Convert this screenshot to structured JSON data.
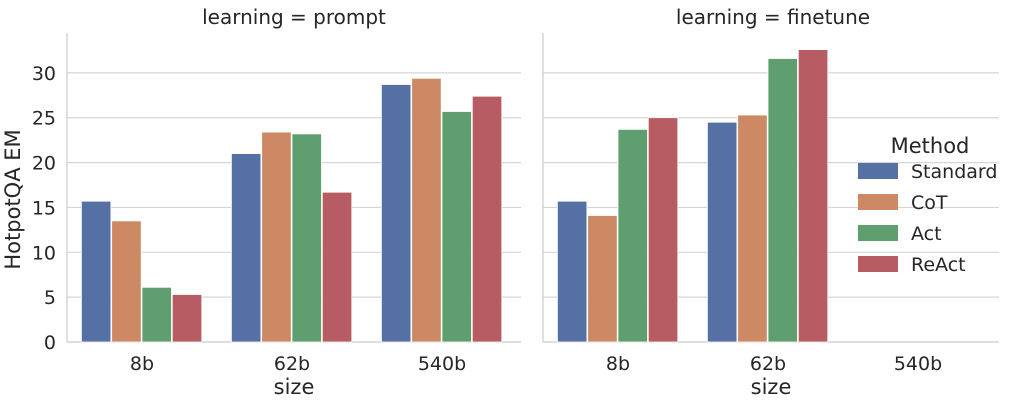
{
  "chart_data": {
    "type": "bar",
    "ylabel": "HotpotQA EM",
    "xlabel": "size",
    "ylim": [
      0,
      34
    ],
    "yticks": [
      0,
      5,
      10,
      15,
      20,
      25,
      30
    ],
    "grid": true,
    "legend": {
      "title": "Method",
      "placement": "right"
    },
    "categories": [
      "8b",
      "62b",
      "540b"
    ],
    "colors": {
      "Standard": "#5470a4",
      "CoT": "#cc8963",
      "Act": "#5f9e6e",
      "ReAct": "#b65c62"
    },
    "panels": [
      {
        "title": "learning = prompt",
        "series": [
          {
            "name": "Standard",
            "values": [
              15.7,
              21.0,
              28.7
            ]
          },
          {
            "name": "CoT",
            "values": [
              13.5,
              23.4,
              29.4
            ]
          },
          {
            "name": "Act",
            "values": [
              6.1,
              23.2,
              25.7
            ]
          },
          {
            "name": "ReAct",
            "values": [
              5.3,
              16.7,
              27.4
            ]
          }
        ]
      },
      {
        "title": "learning = finetune",
        "series": [
          {
            "name": "Standard",
            "values": [
              15.7,
              24.5,
              null
            ]
          },
          {
            "name": "CoT",
            "values": [
              14.1,
              25.3,
              null
            ]
          },
          {
            "name": "Act",
            "values": [
              23.7,
              31.6,
              null
            ]
          },
          {
            "name": "ReAct",
            "values": [
              25.0,
              32.6,
              null
            ]
          }
        ]
      }
    ]
  }
}
